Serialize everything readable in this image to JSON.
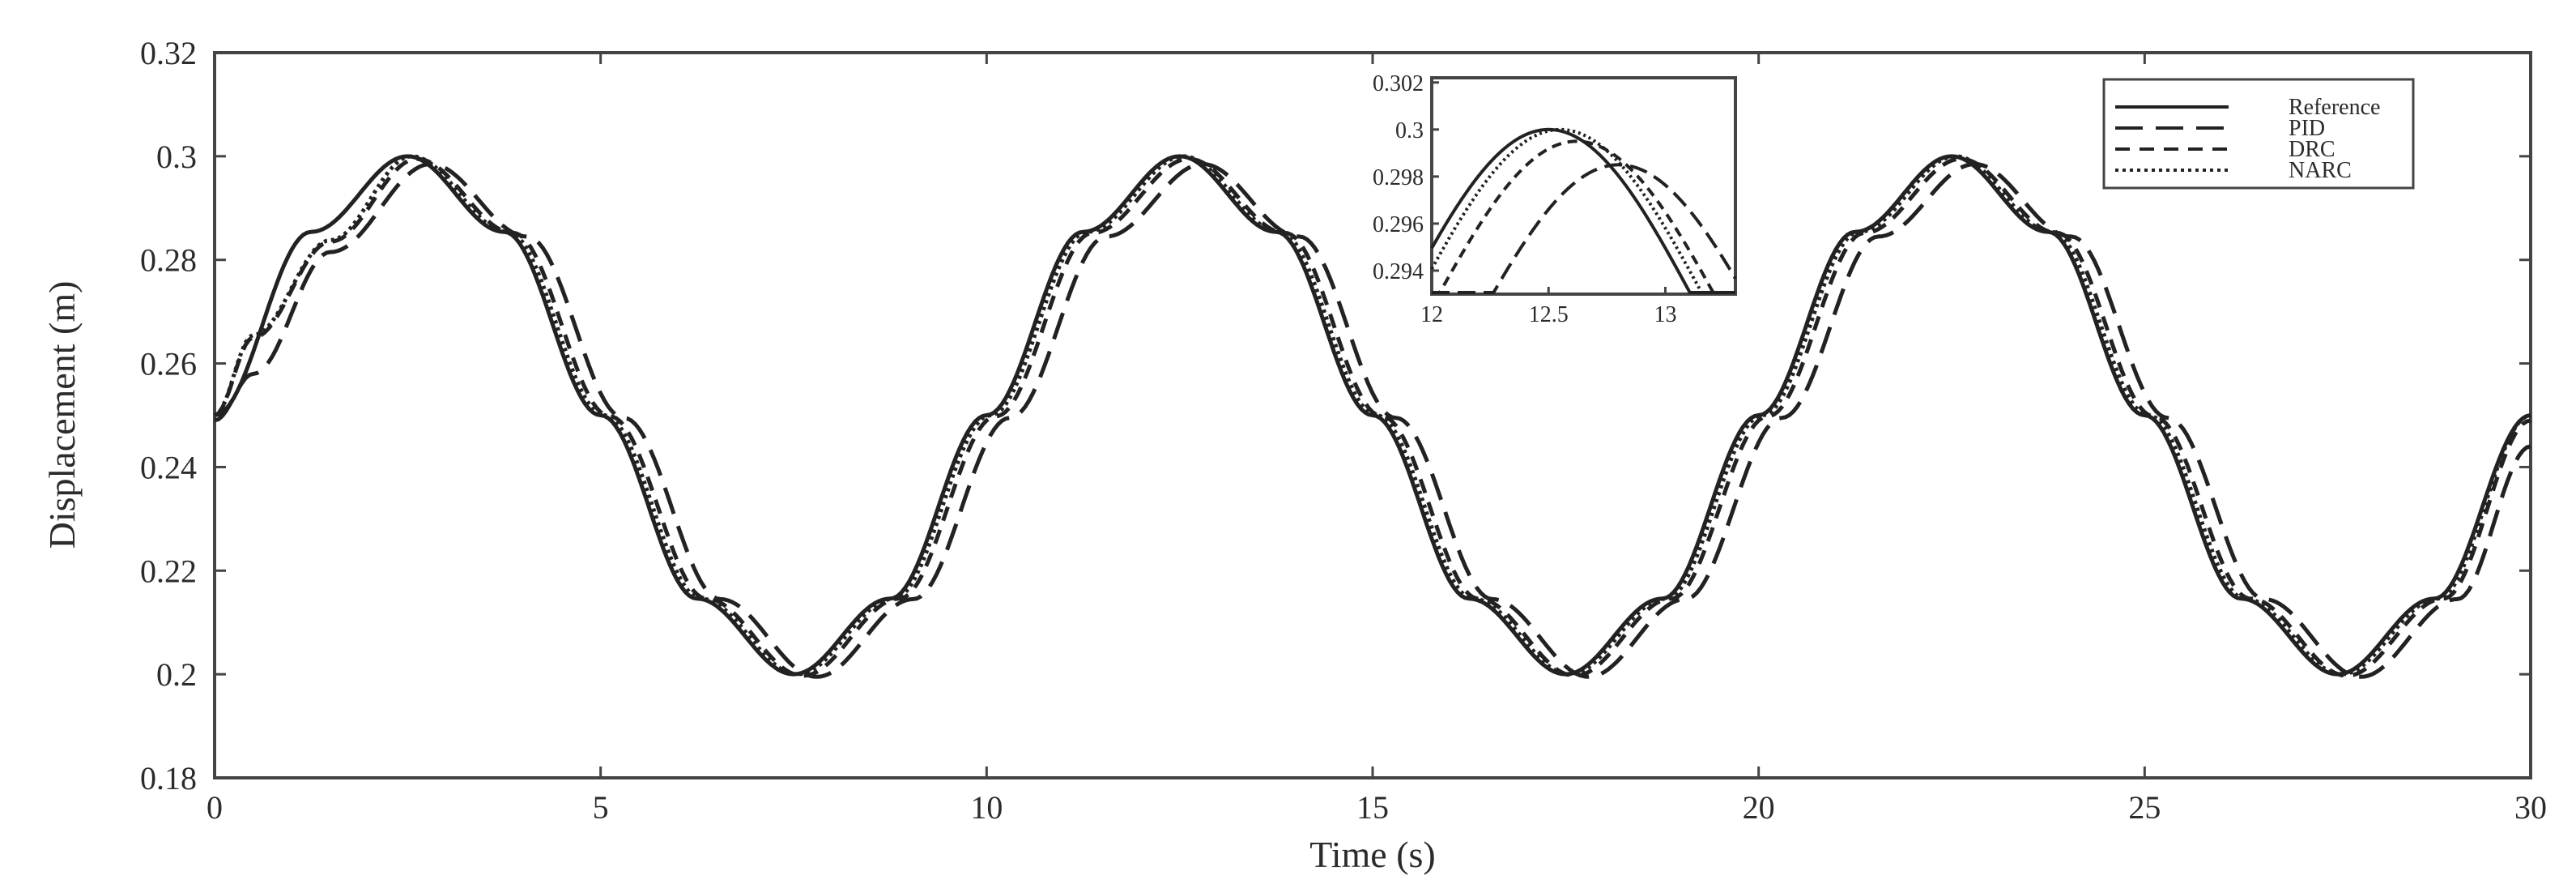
{
  "chart_data": {
    "type": "line",
    "title": "",
    "xlabel": "Time (s)",
    "ylabel": "Displacement (m)",
    "xlim": [
      0,
      30
    ],
    "ylim": [
      0.18,
      0.32
    ],
    "xticks": [
      0,
      5,
      10,
      15,
      20,
      25,
      30
    ],
    "xtick_labels": [
      "0",
      "5",
      "10",
      "15",
      "20",
      "25",
      "30"
    ],
    "yticks": [
      0.18,
      0.2,
      0.22,
      0.24,
      0.26,
      0.28,
      0.3,
      0.32
    ],
    "ytick_labels": [
      "0.18",
      "0.2",
      "0.22",
      "0.24",
      "0.26",
      "0.28",
      "0.3",
      "0.32"
    ],
    "grid": false,
    "legend_position": "top-right",
    "series": [
      {
        "name": "Reference",
        "style": "solid",
        "x": [
          0,
          1.25,
          2.5,
          3.75,
          5,
          6.25,
          7.5,
          8.75,
          10,
          11.25,
          12.5,
          13.75,
          15,
          16.25,
          17.5,
          18.75,
          20,
          21.25,
          22.5,
          23.75,
          25,
          26.25,
          27.5,
          28.75,
          30
        ],
        "y": [
          0.25,
          0.2854,
          0.3,
          0.2854,
          0.25,
          0.2146,
          0.2,
          0.2146,
          0.25,
          0.2854,
          0.3,
          0.2854,
          0.25,
          0.2146,
          0.2,
          0.2146,
          0.25,
          0.2854,
          0.3,
          0.2854,
          0.25,
          0.2146,
          0.2,
          0.2146,
          0.25
        ]
      },
      {
        "name": "PID",
        "style": "longdash",
        "x": [
          0,
          0.5,
          1.5,
          2.8,
          4.05,
          5.3,
          6.55,
          7.8,
          9.05,
          10.3,
          11.55,
          12.8,
          14.05,
          15.3,
          16.55,
          17.8,
          19.05,
          20.3,
          21.55,
          22.8,
          24.05,
          25.3,
          26.55,
          27.8,
          29.05,
          30
        ],
        "y": [
          0.249,
          0.258,
          0.2815,
          0.2985,
          0.2845,
          0.2495,
          0.2145,
          0.1995,
          0.2145,
          0.2495,
          0.2845,
          0.2985,
          0.2845,
          0.2495,
          0.2145,
          0.1995,
          0.2145,
          0.2495,
          0.2845,
          0.2985,
          0.2845,
          0.2495,
          0.2145,
          0.1995,
          0.2145,
          0.244
        ]
      },
      {
        "name": "DRC",
        "style": "dash",
        "x": [
          0,
          0.5,
          1.5,
          2.62,
          3.87,
          5.12,
          6.37,
          7.62,
          8.87,
          10.12,
          11.37,
          12.62,
          13.87,
          15.12,
          16.37,
          17.62,
          18.87,
          20.12,
          21.37,
          22.62,
          23.87,
          25.12,
          26.37,
          27.62,
          28.87,
          30
        ],
        "y": [
          0.25,
          0.265,
          0.2835,
          0.2995,
          0.2852,
          0.2498,
          0.2146,
          0.1997,
          0.2146,
          0.2498,
          0.2852,
          0.2995,
          0.2852,
          0.2498,
          0.2146,
          0.1997,
          0.2146,
          0.2498,
          0.2852,
          0.2995,
          0.2852,
          0.2498,
          0.2146,
          0.1997,
          0.2146,
          0.249
        ]
      },
      {
        "name": "NARC",
        "style": "dotted",
        "x": [
          0,
          0.5,
          1.5,
          2.55,
          3.8,
          5.05,
          6.3,
          7.55,
          8.8,
          10.05,
          11.3,
          12.55,
          13.8,
          15.05,
          16.3,
          17.55,
          18.8,
          20.05,
          21.3,
          22.55,
          23.8,
          25.05,
          26.3,
          27.55,
          28.8,
          30
        ],
        "y": [
          0.25,
          0.2655,
          0.2838,
          0.3,
          0.2854,
          0.25,
          0.2146,
          0.2,
          0.2146,
          0.25,
          0.2854,
          0.3,
          0.2854,
          0.25,
          0.2146,
          0.2,
          0.2146,
          0.25,
          0.2854,
          0.3,
          0.2854,
          0.25,
          0.2146,
          0.2,
          0.2146,
          0.25
        ]
      }
    ],
    "inset": {
      "xlim": [
        12,
        13.3
      ],
      "ylim": [
        0.293,
        0.3022
      ],
      "xticks": [
        12,
        12.5,
        13
      ],
      "xtick_labels": [
        "12",
        "12.5",
        "13"
      ],
      "yticks": [
        0.294,
        0.296,
        0.298,
        0.3,
        0.302
      ],
      "ytick_labels": [
        "0.294",
        "0.296",
        "0.298",
        "0.3",
        "0.302"
      ]
    }
  }
}
